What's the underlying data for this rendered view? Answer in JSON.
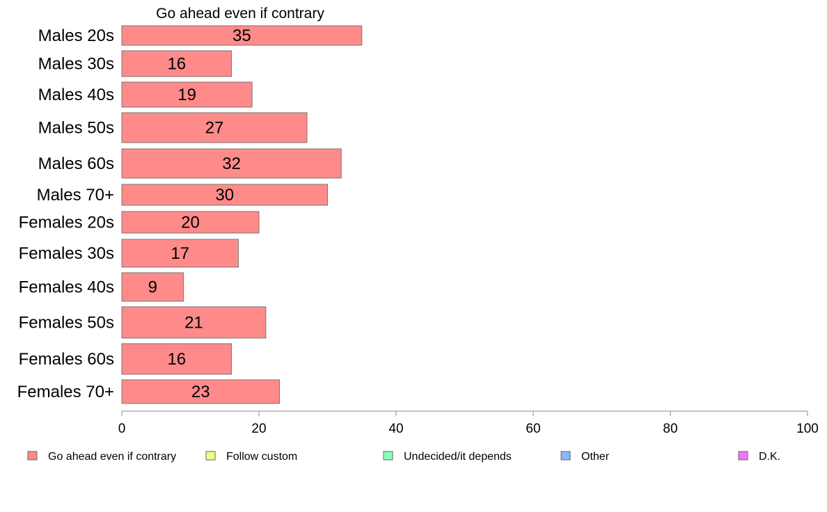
{
  "chart_data": {
    "type": "bar",
    "orientation": "horizontal",
    "title": "Go ahead even if contrary",
    "categories": [
      "Males 20s",
      "Males 30s",
      "Males 40s",
      "Males 50s",
      "Males 60s",
      "Males 70+",
      "Females 20s",
      "Females 30s",
      "Females 40s",
      "Females 50s",
      "Females 60s",
      "Females 70+"
    ],
    "series": [
      {
        "name": "Go ahead even if contrary",
        "color": "#ff8a8a",
        "values": [
          35,
          16,
          19,
          27,
          32,
          30,
          20,
          17,
          9,
          21,
          16,
          23
        ]
      }
    ],
    "xlim": [
      0,
      100
    ],
    "xticks": [
      0,
      20,
      40,
      60,
      80,
      100
    ],
    "grid": false,
    "legend": {
      "placement": "bottom",
      "entries": [
        {
          "label": "Go ahead even if contrary",
          "color": "#ff8a8a"
        },
        {
          "label": "Follow custom",
          "color": "#eeff88"
        },
        {
          "label": "Undecided/it depends",
          "color": "#88ffbb"
        },
        {
          "label": "Other",
          "color": "#88b8ff"
        },
        {
          "label": "D.K.",
          "color": "#ee77ff"
        }
      ]
    }
  }
}
